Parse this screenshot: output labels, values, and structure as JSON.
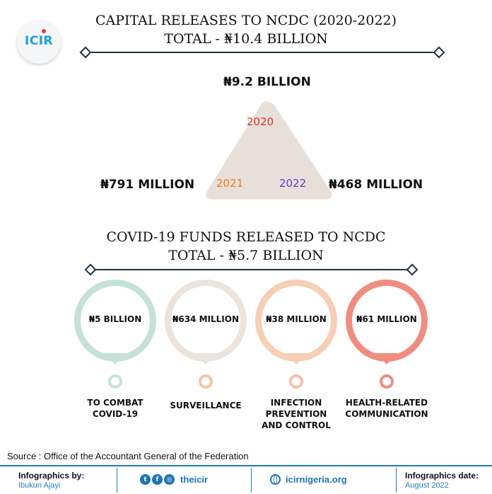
{
  "logo": {
    "text": "ICIR"
  },
  "capital": {
    "title_line1": "CAPITAL RELEASES TO NCDC (2020-2022)",
    "title_line2": "TOTAL - ₦10.4 BILLION",
    "items": [
      {
        "year": "2020",
        "amount": "₦9.2 BILLION",
        "color": "#e03131"
      },
      {
        "year": "2021",
        "amount": "₦791 MILLION",
        "color": "#ec7c20"
      },
      {
        "year": "2022",
        "amount": "₦468 MILLION",
        "color": "#6a2fd6"
      }
    ],
    "triangle_color": "#e8e0d8"
  },
  "covid": {
    "title_line1": "COVID-19 FUNDS RELEASED TO NCDC",
    "title_line2": "TOTAL - ₦5.7 BILLION",
    "items": [
      {
        "amount": "₦5 BILLION",
        "label": [
          "TO COMBAT",
          "COVID-19"
        ],
        "color": "#c6e2d5"
      },
      {
        "amount": "₦634 MILLION",
        "label": [
          "SURVEILLANCE"
        ],
        "color": "#ebe3dc"
      },
      {
        "amount": "₦38 MILLION",
        "label": [
          "INFECTION",
          "PREVENTION",
          "AND CONTROL"
        ],
        "color": "#f7cfb5"
      },
      {
        "amount": "₦61 MILLION",
        "label": [
          "HEALTH-RELATED",
          "COMMUNICATION"
        ],
        "color": "#ef8d80"
      }
    ]
  },
  "source": "Source : Office of the Accountant General of the Federation",
  "footer": {
    "credits_heading": "Infographics by:",
    "credits_name": "Ibukun Ajayi",
    "social_handle": "theicir",
    "social_icons": [
      "twitter-icon",
      "facebook-icon",
      "instagram-icon"
    ],
    "website": "icirnigeria.org",
    "date_heading": "Infographics date:",
    "date_value": "August 2022",
    "accent": "#1f7fb5"
  }
}
